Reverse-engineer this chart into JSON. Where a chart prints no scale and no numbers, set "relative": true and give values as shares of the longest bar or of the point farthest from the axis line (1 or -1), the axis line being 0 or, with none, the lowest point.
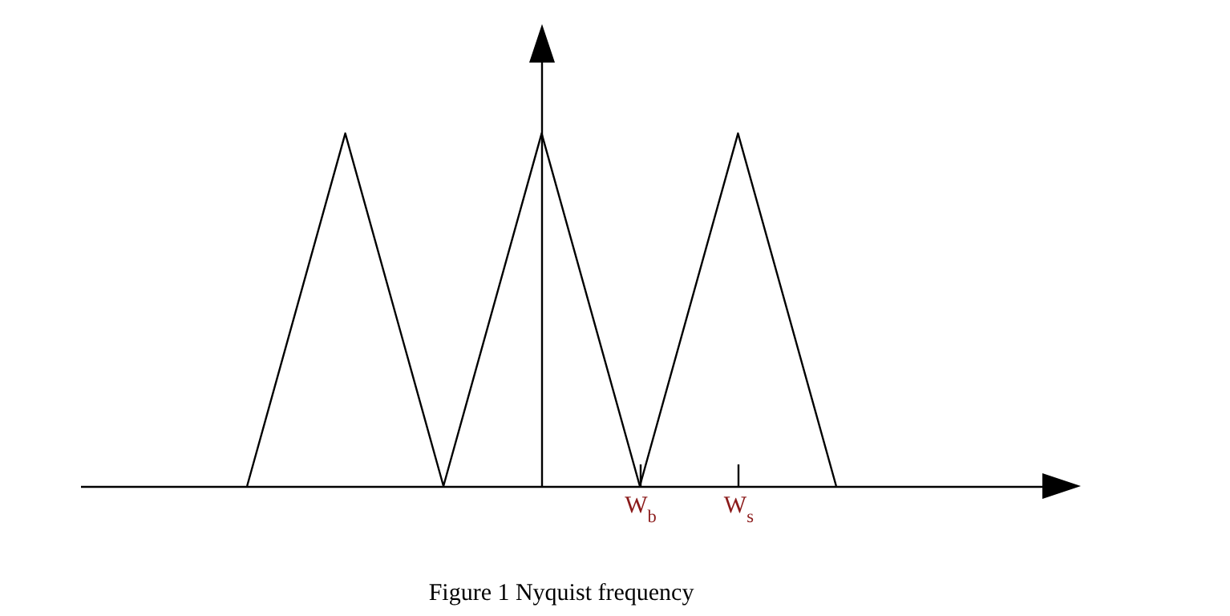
{
  "chart_data": {
    "type": "line",
    "title": "Figure 1 Nyquist frequency",
    "relative": true,
    "marker": "none",
    "categories": [
      null,
      null,
      null,
      null,
      null,
      "W$_{b}$",
      "W$_{s}$",
      null,
      null,
      null
    ],
    "series": [
      {
        "color": "#000000",
        "values": [
          null,
          0,
          1,
          0,
          1,
          0,
          1,
          0,
          null,
          null
        ]
      }
    ]
  }
}
